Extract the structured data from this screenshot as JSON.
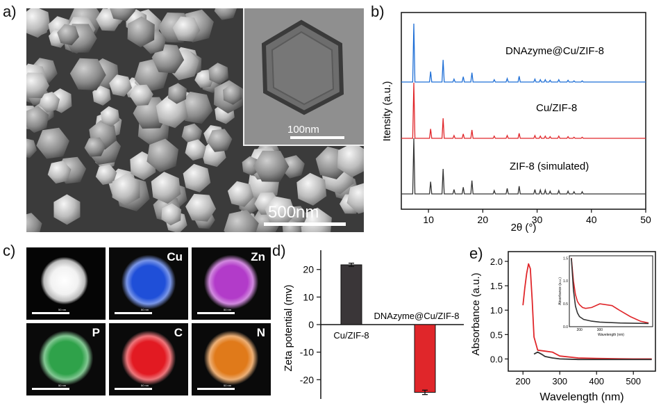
{
  "panels": {
    "a": {
      "label": "a)",
      "scale_main": "500nm",
      "scale_inset": "100nm"
    },
    "b": {
      "label": "b)"
    },
    "c": {
      "label": "c)",
      "tiles": [
        {
          "element": "",
          "color": "#e6e6e6",
          "scale": "50 nm"
        },
        {
          "element": "Cu",
          "color": "#1f4fd8",
          "scale": "50 nm"
        },
        {
          "element": "Zn",
          "color": "#b23bc9",
          "scale": "50 nm"
        },
        {
          "element": "P",
          "color": "#2fa24a",
          "scale": "50 nm"
        },
        {
          "element": "C",
          "color": "#e21a22",
          "scale": "50 nm"
        },
        {
          "element": "N",
          "color": "#e07a1a",
          "scale": "50 nm"
        }
      ]
    },
    "d": {
      "label": "d)"
    },
    "e": {
      "label": "e)"
    }
  },
  "chart_data": [
    {
      "type": "line",
      "panel": "b",
      "title": "",
      "xlabel": "2θ (°)",
      "ylabel": "Itensity (a.u.)",
      "xlim": [
        5,
        50
      ],
      "xticks": [
        10,
        20,
        30,
        40,
        50
      ],
      "yticks": "none",
      "peaks_2theta": [
        7.3,
        10.4,
        12.7,
        14.7,
        16.4,
        18.0,
        22.1,
        24.5,
        26.7,
        29.6,
        30.6,
        31.5,
        32.4,
        34.0,
        35.7,
        36.8,
        38.3
      ],
      "series": [
        {
          "name": "DNAzyme@Cu/ZIF-8",
          "color": "#1f6fd6",
          "relative_intensity": [
            1.0,
            0.18,
            0.38,
            0.05,
            0.09,
            0.16,
            0.04,
            0.06,
            0.1,
            0.05,
            0.04,
            0.04,
            0.03,
            0.04,
            0.03,
            0.02,
            0.02
          ]
        },
        {
          "name": "Cu/ZIF-8",
          "color": "#e0262a",
          "relative_intensity": [
            1.0,
            0.17,
            0.36,
            0.05,
            0.08,
            0.15,
            0.04,
            0.05,
            0.09,
            0.05,
            0.04,
            0.04,
            0.03,
            0.04,
            0.03,
            0.02,
            0.02
          ]
        },
        {
          "name": "ZIF-8 (simulated)",
          "color": "#333333",
          "relative_intensity": [
            1.0,
            0.22,
            0.45,
            0.08,
            0.12,
            0.24,
            0.06,
            0.1,
            0.14,
            0.08,
            0.07,
            0.07,
            0.05,
            0.06,
            0.05,
            0.04,
            0.04
          ]
        }
      ]
    },
    {
      "type": "bar",
      "panel": "d",
      "title": "",
      "ylabel": "Zeta potential (mv)",
      "ylim": [
        -27,
        27
      ],
      "yticks": [
        -20,
        -10,
        0,
        10,
        20
      ],
      "categories": [
        "Cu/ZIF-8",
        "DNAzyme@Cu/ZIF-8"
      ],
      "values": [
        21.7,
        -24.6
      ],
      "errors": [
        0.6,
        0.8
      ],
      "colors": [
        "#3a3638",
        "#e0262a"
      ]
    },
    {
      "type": "line",
      "panel": "e",
      "title": "",
      "xlabel": "Wavelength (nm)",
      "ylabel": "Absorbance (a.u.)",
      "xlim": [
        160,
        560
      ],
      "ylim": [
        -0.25,
        2.2
      ],
      "xticks": [
        200,
        300,
        400,
        500
      ],
      "yticks": [
        0.0,
        0.5,
        1.0,
        1.5,
        2.0
      ],
      "series": [
        {
          "name": "",
          "color": "#e0262a",
          "x": [
            200,
            205,
            210,
            215,
            220,
            225,
            230,
            240,
            260,
            280,
            300,
            350,
            400,
            500,
            550
          ],
          "y": [
            1.1,
            1.45,
            1.75,
            1.95,
            1.85,
            1.2,
            0.45,
            0.18,
            0.16,
            0.14,
            0.06,
            0.02,
            0.01,
            0.0,
            0.0
          ]
        },
        {
          "name": "",
          "color": "#333333",
          "x": [
            230,
            240,
            250,
            260,
            280,
            300,
            350,
            550
          ],
          "y": [
            0.1,
            0.14,
            0.1,
            0.05,
            0.02,
            0.0,
            -0.01,
            -0.01
          ]
        }
      ],
      "inset": {
        "xlabel": "Wavelength (nm)",
        "ylabel": "Absorbance (a.u.)",
        "xlim": [
          150,
          560
        ],
        "ylim": [
          0,
          1.55
        ],
        "xticks": [
          200,
          300
        ],
        "yticks": [
          0.0,
          0.5,
          1.0,
          1.5
        ],
        "series": [
          {
            "name": "",
            "color": "#e0262a",
            "x": [
              160,
              170,
              180,
              190,
              200,
              215,
              230,
              260,
              300,
              360,
              400,
              450,
              500,
              540
            ],
            "y": [
              1.5,
              1.0,
              0.7,
              0.55,
              0.48,
              0.42,
              0.4,
              0.42,
              0.5,
              0.46,
              0.35,
              0.22,
              0.12,
              0.08
            ]
          },
          {
            "name": "",
            "color": "#333333",
            "x": [
              160,
              170,
              180,
              190,
              200,
              220,
              260,
              300,
              400,
              540
            ],
            "y": [
              1.5,
              0.8,
              0.45,
              0.3,
              0.22,
              0.16,
              0.12,
              0.1,
              0.08,
              0.07
            ]
          }
        ]
      }
    }
  ]
}
